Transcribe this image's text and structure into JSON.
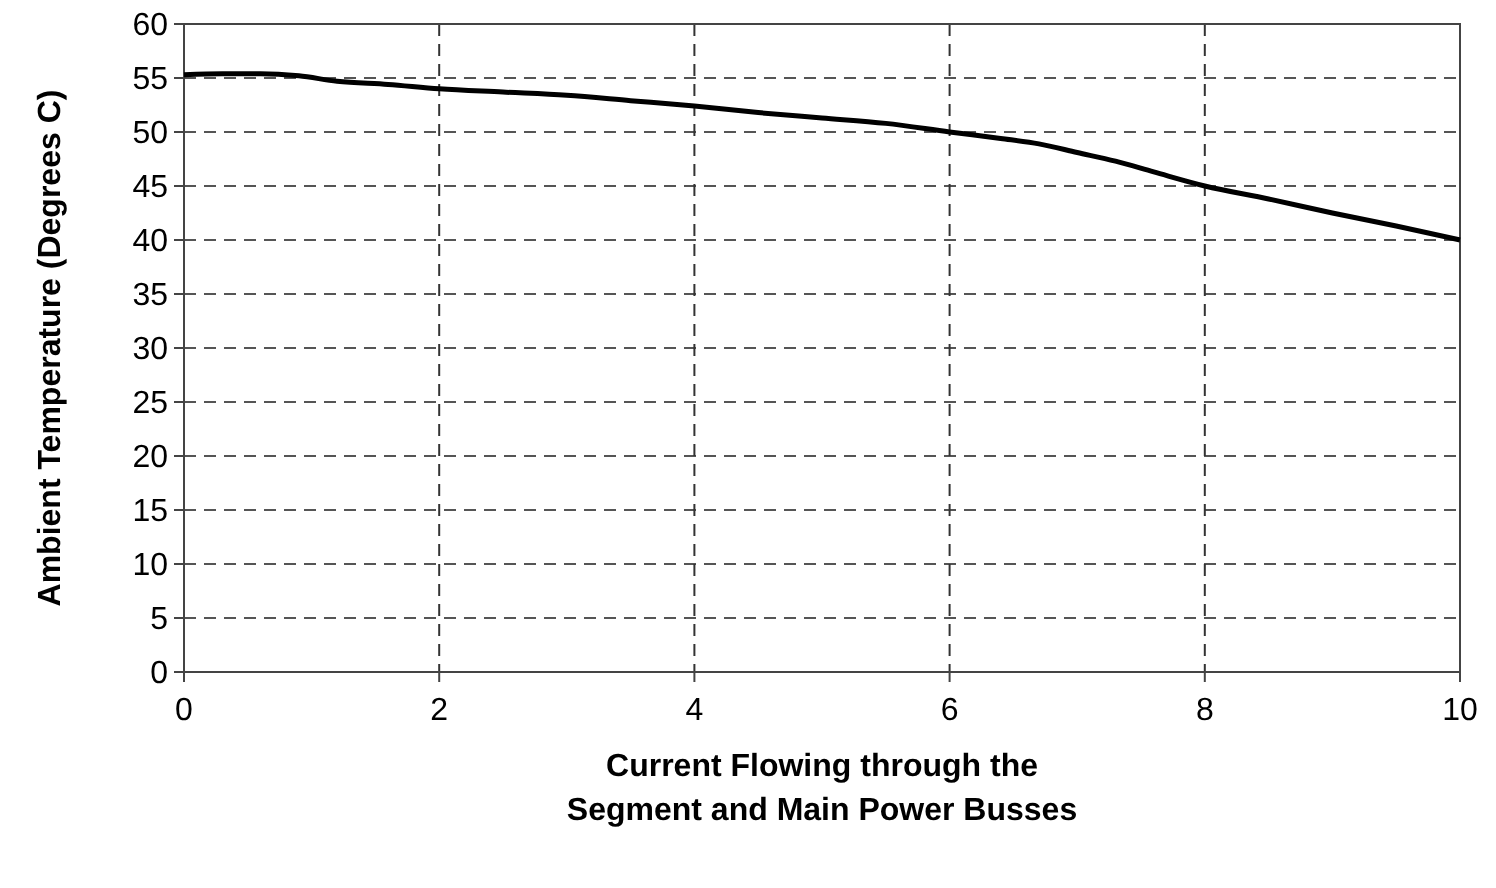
{
  "chart_data": {
    "type": "line",
    "xlabel": "Current Flowing through the\nSegment and Main Power Busses",
    "ylabel": "Ambient Temperature (Degrees C)",
    "x": [
      0,
      0.3,
      0.6,
      0.9,
      1.2,
      1.6,
      2,
      2.5,
      3,
      3.5,
      4,
      4.5,
      5,
      5.5,
      6,
      6.4,
      6.7,
      7,
      7.3,
      7.6,
      8,
      8.5,
      9,
      9.5,
      10
    ],
    "series": [
      {
        "color": "#000000",
        "values": [
          55.3,
          55.4,
          55.4,
          55.2,
          54.7,
          54.4,
          54,
          53.7,
          53.4,
          52.9,
          52.4,
          51.8,
          51.3,
          50.8,
          50,
          49.4,
          48.9,
          48.1,
          47.3,
          46.3,
          45,
          43.8,
          42.5,
          41.3,
          40
        ]
      }
    ],
    "xlim": [
      0,
      10
    ],
    "xticks": [
      0,
      2,
      4,
      6,
      8,
      10
    ],
    "ylim": [
      0,
      60
    ],
    "yticks": [
      0,
      5,
      10,
      15,
      20,
      25,
      30,
      35,
      40,
      45,
      50,
      55,
      60
    ],
    "grid": true,
    "marker": "none",
    "line_style": "solid"
  }
}
